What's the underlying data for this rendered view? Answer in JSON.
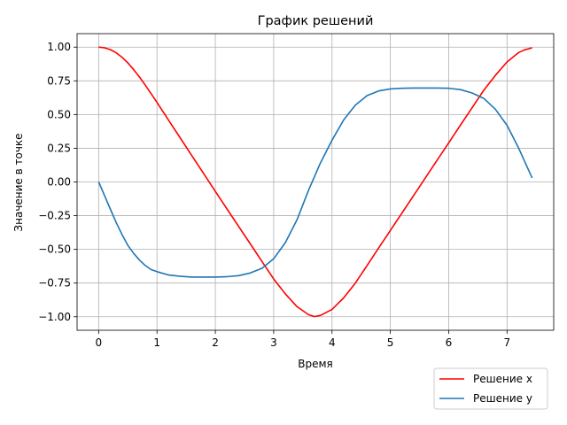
{
  "chart_data": {
    "type": "line",
    "title": "График решений",
    "xlabel": "Время",
    "ylabel": "Значение в точке",
    "xlim": [
      -0.37,
      7.8
    ],
    "ylim": [
      -1.1,
      1.1
    ],
    "grid": true,
    "legend_position": "below-right",
    "x_ticks": [
      0,
      1,
      2,
      3,
      4,
      5,
      6,
      7
    ],
    "x_tick_labels": [
      "0",
      "1",
      "2",
      "3",
      "4",
      "5",
      "6",
      "7"
    ],
    "y_ticks": [
      -1.0,
      -0.75,
      -0.5,
      -0.25,
      0.0,
      0.25,
      0.5,
      0.75,
      1.0
    ],
    "y_tick_labels": [
      "−1.00",
      "−0.75",
      "−0.50",
      "−0.25",
      "0.00",
      "0.25",
      "0.50",
      "0.75",
      "1.00"
    ],
    "series": [
      {
        "name": "Решение x",
        "color": "#ff0000",
        "points": [
          [
            0,
            1.0
          ],
          [
            0.1,
            0.995
          ],
          [
            0.2,
            0.982
          ],
          [
            0.3,
            0.958
          ],
          [
            0.4,
            0.925
          ],
          [
            0.5,
            0.883
          ],
          [
            0.6,
            0.833
          ],
          [
            0.7,
            0.778
          ],
          [
            0.8,
            0.718
          ],
          [
            0.9,
            0.655
          ],
          [
            1.0,
            0.59
          ],
          [
            1.2,
            0.457
          ],
          [
            1.4,
            0.325
          ],
          [
            1.6,
            0.193
          ],
          [
            1.8,
            0.062
          ],
          [
            2.0,
            -0.07
          ],
          [
            2.2,
            -0.2
          ],
          [
            2.4,
            -0.33
          ],
          [
            2.6,
            -0.46
          ],
          [
            2.8,
            -0.59
          ],
          [
            3.0,
            -0.72
          ],
          [
            3.2,
            -0.83
          ],
          [
            3.4,
            -0.925
          ],
          [
            3.6,
            -0.985
          ],
          [
            3.7,
            -0.998
          ],
          [
            3.8,
            -0.99
          ],
          [
            4.0,
            -0.945
          ],
          [
            4.2,
            -0.86
          ],
          [
            4.4,
            -0.75
          ],
          [
            4.6,
            -0.62
          ],
          [
            4.8,
            -0.49
          ],
          [
            5.0,
            -0.36
          ],
          [
            5.2,
            -0.23
          ],
          [
            5.4,
            -0.1
          ],
          [
            5.6,
            0.03
          ],
          [
            5.8,
            0.16
          ],
          [
            6.0,
            0.29
          ],
          [
            6.2,
            0.42
          ],
          [
            6.4,
            0.55
          ],
          [
            6.6,
            0.68
          ],
          [
            6.8,
            0.79
          ],
          [
            7.0,
            0.89
          ],
          [
            7.2,
            0.96
          ],
          [
            7.3,
            0.98
          ],
          [
            7.43,
            0.995
          ]
        ]
      },
      {
        "name": "Решение y",
        "color": "#1f77b4",
        "points": [
          [
            0,
            0.0
          ],
          [
            0.1,
            -0.1
          ],
          [
            0.2,
            -0.2
          ],
          [
            0.3,
            -0.3
          ],
          [
            0.4,
            -0.39
          ],
          [
            0.5,
            -0.47
          ],
          [
            0.6,
            -0.53
          ],
          [
            0.7,
            -0.58
          ],
          [
            0.8,
            -0.62
          ],
          [
            0.9,
            -0.65
          ],
          [
            1.0,
            -0.665
          ],
          [
            1.2,
            -0.69
          ],
          [
            1.4,
            -0.7
          ],
          [
            1.6,
            -0.705
          ],
          [
            1.8,
            -0.705
          ],
          [
            2.0,
            -0.705
          ],
          [
            2.2,
            -0.703
          ],
          [
            2.4,
            -0.695
          ],
          [
            2.6,
            -0.675
          ],
          [
            2.8,
            -0.64
          ],
          [
            3.0,
            -0.57
          ],
          [
            3.2,
            -0.45
          ],
          [
            3.4,
            -0.28
          ],
          [
            3.6,
            -0.06
          ],
          [
            3.8,
            0.14
          ],
          [
            4.0,
            0.31
          ],
          [
            4.2,
            0.46
          ],
          [
            4.4,
            0.57
          ],
          [
            4.6,
            0.64
          ],
          [
            4.8,
            0.675
          ],
          [
            5.0,
            0.69
          ],
          [
            5.2,
            0.695
          ],
          [
            5.4,
            0.697
          ],
          [
            5.6,
            0.697
          ],
          [
            5.8,
            0.697
          ],
          [
            6.0,
            0.695
          ],
          [
            6.2,
            0.685
          ],
          [
            6.4,
            0.66
          ],
          [
            6.6,
            0.62
          ],
          [
            6.8,
            0.54
          ],
          [
            7.0,
            0.42
          ],
          [
            7.2,
            0.25
          ],
          [
            7.43,
            0.03
          ]
        ]
      }
    ]
  }
}
